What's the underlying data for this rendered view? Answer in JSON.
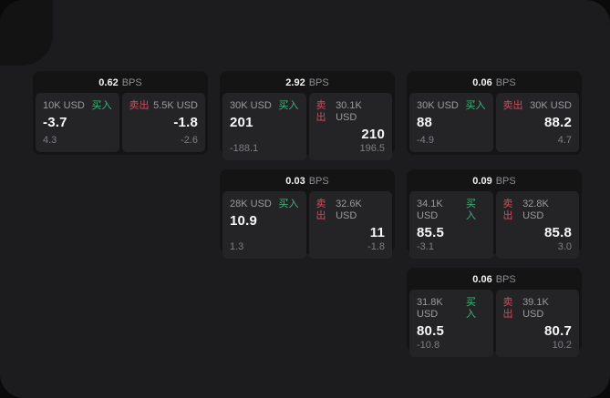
{
  "colors": {
    "buy_green": "#3eb77d",
    "sell_red": "#d44a5e",
    "window_bg": "#1c1c1e",
    "card_bg": "#141415",
    "panel_bg": "#242426"
  },
  "labels": {
    "bps_unit": "BPS",
    "buy": "买入",
    "sell": "卖出"
  },
  "cards": [
    {
      "col": 1,
      "row": 1,
      "bps": "0.62",
      "buy": {
        "amount": "10K USD",
        "price": "-3.7",
        "delta": "4.3"
      },
      "sell": {
        "amount": "5.5K USD",
        "price": "-1.8",
        "delta": "-2.6"
      }
    },
    {
      "col": 2,
      "row": 1,
      "bps": "2.92",
      "buy": {
        "amount": "30K USD",
        "price": "201",
        "delta": "-188.1"
      },
      "sell": {
        "amount": "30.1K USD",
        "price": "210",
        "delta": "196.5"
      }
    },
    {
      "col": 3,
      "row": 1,
      "bps": "0.06",
      "buy": {
        "amount": "30K USD",
        "price": "88",
        "delta": "-4.9"
      },
      "sell": {
        "amount": "30K USD",
        "price": "88.2",
        "delta": "4.7"
      }
    },
    {
      "col": 2,
      "row": 2,
      "bps": "0.03",
      "buy": {
        "amount": "28K USD",
        "price": "10.9",
        "delta": "1.3"
      },
      "sell": {
        "amount": "32.6K USD",
        "price": "11",
        "delta": "-1.8"
      }
    },
    {
      "col": 3,
      "row": 2,
      "bps": "0.09",
      "buy": {
        "amount": "34.1K USD",
        "price": "85.5",
        "delta": "-3.1"
      },
      "sell": {
        "amount": "32.8K USD",
        "price": "85.8",
        "delta": "3.0"
      }
    },
    {
      "col": 3,
      "row": 3,
      "bps": "0.06",
      "buy": {
        "amount": "31.8K USD",
        "price": "80.5",
        "delta": "-10.8"
      },
      "sell": {
        "amount": "39.1K USD",
        "price": "80.7",
        "delta": "10.2"
      }
    }
  ]
}
